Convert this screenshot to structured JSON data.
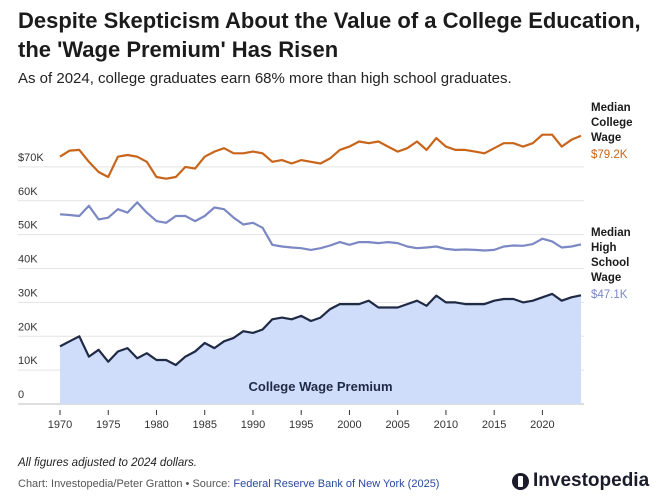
{
  "header": {
    "title": "Despite Skepticism About the Value of a College Education, the 'Wage Premium' Has Risen",
    "subtitle": "As of 2024, college graduates earn 68% more than high school graduates."
  },
  "footer": {
    "note": "All figures adjusted to 2024 dollars.",
    "credit": "Chart: Investopedia/Peter Gratton • Source:",
    "source": "Federal Reserve Bank of New York (2025)",
    "logo_text": "Investopedia"
  },
  "chart_data": {
    "type": "line",
    "title": "Despite Skepticism About the Value of a College Education, the 'Wage Premium' Has Risen",
    "subtitle": "As of 2024, college graduates earn 68% more than high school graduates.",
    "xlabel": "",
    "ylabel": "",
    "xlim": [
      1970,
      2024
    ],
    "ylim": [
      0,
      80000
    ],
    "x_ticks": [
      1970,
      1975,
      1980,
      1985,
      1990,
      1995,
      2000,
      2005,
      2010,
      2015,
      2020
    ],
    "y_ticks": [
      0,
      10000,
      20000,
      30000,
      40000,
      50000,
      60000,
      70000
    ],
    "y_tick_labels": [
      "0",
      "10K",
      "20K",
      "30K",
      "40K",
      "50K",
      "60K",
      "$70K"
    ],
    "grid": true,
    "area_label": "College Wage Premium",
    "colors": {
      "college": "#c8651b",
      "high_school": "#7b88c4",
      "premium": "#1f2a44",
      "premium_fill": "#cfdcfa"
    },
    "series": [
      {
        "name": "Median College Wage",
        "label_lines": [
          "Median",
          "College",
          "Wage"
        ],
        "end_label": "$79.2K",
        "x": [
          1970,
          1971,
          1972,
          1973,
          1974,
          1975,
          1976,
          1977,
          1978,
          1979,
          1980,
          1981,
          1982,
          1983,
          1984,
          1985,
          1986,
          1987,
          1988,
          1989,
          1990,
          1991,
          1992,
          1993,
          1994,
          1995,
          1996,
          1997,
          1998,
          1999,
          2000,
          2001,
          2002,
          2003,
          2004,
          2005,
          2006,
          2007,
          2008,
          2009,
          2010,
          2011,
          2012,
          2013,
          2014,
          2015,
          2016,
          2017,
          2018,
          2019,
          2020,
          2021,
          2022,
          2023,
          2024
        ],
        "values": [
          73000,
          74800,
          75000,
          71500,
          68500,
          67000,
          73000,
          73500,
          73000,
          71500,
          67000,
          66500,
          67000,
          70000,
          69500,
          73000,
          74500,
          75500,
          74000,
          74000,
          74500,
          74000,
          71500,
          72000,
          71000,
          72000,
          71500,
          71000,
          72500,
          75000,
          76000,
          77500,
          77000,
          77500,
          76000,
          74500,
          75500,
          77500,
          75000,
          78500,
          76000,
          75000,
          75000,
          74500,
          74000,
          75500,
          77000,
          77000,
          76000,
          77000,
          79500,
          79500,
          76000,
          78000,
          79200
        ]
      },
      {
        "name": "Median High School Wage",
        "label_lines": [
          "Median",
          "High",
          "School",
          "Wage"
        ],
        "end_label": "$47.1K",
        "x": [
          1970,
          1971,
          1972,
          1973,
          1974,
          1975,
          1976,
          1977,
          1978,
          1979,
          1980,
          1981,
          1982,
          1983,
          1984,
          1985,
          1986,
          1987,
          1988,
          1989,
          1990,
          1991,
          1992,
          1993,
          1994,
          1995,
          1996,
          1997,
          1998,
          1999,
          2000,
          2001,
          2002,
          2003,
          2004,
          2005,
          2006,
          2007,
          2008,
          2009,
          2010,
          2011,
          2012,
          2013,
          2014,
          2015,
          2016,
          2017,
          2018,
          2019,
          2020,
          2021,
          2022,
          2023,
          2024
        ],
        "values": [
          56000,
          55800,
          55500,
          58500,
          54500,
          55000,
          57500,
          56500,
          59500,
          56500,
          54000,
          53500,
          55500,
          55500,
          54000,
          55500,
          58000,
          57500,
          55000,
          53000,
          53500,
          52000,
          47000,
          46500,
          46200,
          46000,
          45500,
          46000,
          46800,
          47800,
          47000,
          47800,
          47800,
          47500,
          47800,
          47500,
          46500,
          46000,
          46200,
          46500,
          45800,
          45500,
          45600,
          45500,
          45300,
          45500,
          46500,
          46800,
          46700,
          47200,
          48800,
          48000,
          46200,
          46500,
          47100
        ]
      },
      {
        "name": "College Wage Premium",
        "x": [
          1970,
          1971,
          1972,
          1973,
          1974,
          1975,
          1976,
          1977,
          1978,
          1979,
          1980,
          1981,
          1982,
          1983,
          1984,
          1985,
          1986,
          1987,
          1988,
          1989,
          1990,
          1991,
          1992,
          1993,
          1994,
          1995,
          1996,
          1997,
          1998,
          1999,
          2000,
          2001,
          2002,
          2003,
          2004,
          2005,
          2006,
          2007,
          2008,
          2009,
          2010,
          2011,
          2012,
          2013,
          2014,
          2015,
          2016,
          2017,
          2018,
          2019,
          2020,
          2021,
          2022,
          2023,
          2024
        ],
        "values": [
          17000,
          18500,
          20000,
          14000,
          16000,
          12500,
          15500,
          16500,
          13500,
          15000,
          13000,
          13000,
          11500,
          14000,
          15500,
          18000,
          16500,
          18500,
          19500,
          21500,
          21000,
          22000,
          25000,
          25500,
          25000,
          26000,
          24500,
          25500,
          28000,
          29500,
          29500,
          29500,
          30500,
          28500,
          28500,
          28500,
          29500,
          30500,
          29000,
          32000,
          30000,
          30000,
          29500,
          29500,
          29500,
          30500,
          31000,
          31000,
          30000,
          30500,
          31500,
          32500,
          30500,
          31500,
          32100
        ]
      }
    ]
  }
}
